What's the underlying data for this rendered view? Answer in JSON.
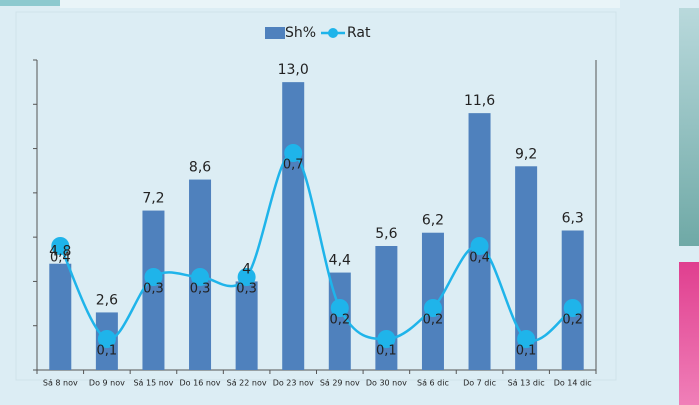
{
  "chart_data": {
    "type": "bar-line",
    "categories": [
      "Sá 8 nov",
      "Do 9 nov",
      "Sá 15 nov",
      "Do 16 nov",
      "Sá 22 nov",
      "Do 23 nov",
      "Sá 29 nov",
      "Do 30 nov",
      "Sá 6 dic",
      "Do 7 dic",
      "Sá 13 dic",
      "Do 14 dic"
    ],
    "series": [
      {
        "name": "Sh%",
        "type": "bar",
        "color": "#4f81bd",
        "values": [
          4.8,
          2.6,
          7.2,
          8.6,
          4,
          13.0,
          4.4,
          5.6,
          6.2,
          11.6,
          9.2,
          6.3
        ],
        "value_labels": [
          "4,8",
          "2,6",
          "7,2",
          "8,6",
          "4",
          "13,0",
          "4,4",
          "5,6",
          "6,2",
          "11,6",
          "9,2",
          "6,3"
        ]
      },
      {
        "name": "Rat",
        "type": "line",
        "axis": "y2",
        "color": "#1fb4ea",
        "values": [
          0.4,
          0.1,
          0.3,
          0.3,
          0.3,
          0.7,
          0.2,
          0.1,
          0.2,
          0.4,
          0.1,
          0.2
        ],
        "value_labels": [
          "0,4",
          "0,1",
          "0,3",
          "0,3",
          "0,3",
          "0,7",
          "0,2",
          "0,1",
          "0,2",
          "0,4",
          "0,1",
          "0,2"
        ]
      }
    ],
    "ylim": [
      0,
      14
    ],
    "yticks": [
      0,
      2,
      4,
      6,
      8,
      10,
      12,
      14
    ],
    "y2lim": [
      0,
      1
    ],
    "legend": "top"
  }
}
